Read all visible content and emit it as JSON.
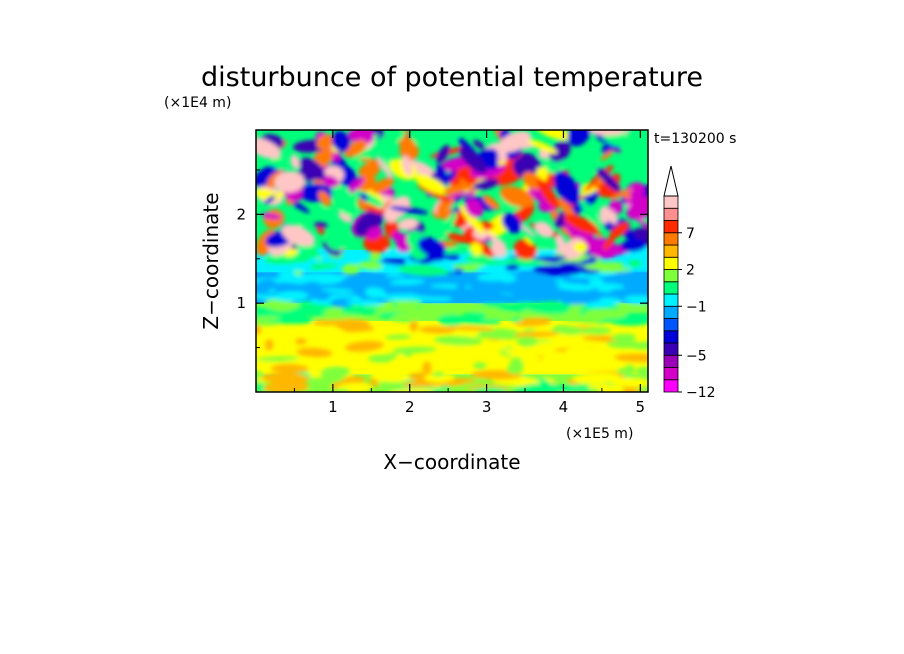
{
  "chart_data": {
    "type": "heatmap",
    "title": "disturbunce of potential temperature",
    "xlabel": "X−coordinate",
    "ylabel": "Z−coordinate",
    "x_unit": "(×1E5 m)",
    "y_unit": "(×1E4 m)",
    "time_label": "t=130200 s",
    "xlim": [
      0,
      5.1
    ],
    "ylim": [
      0,
      2.95
    ],
    "x_ticks": [
      1,
      2,
      3,
      4,
      5
    ],
    "x_tick_labels": [
      "1",
      "2",
      "3",
      "4",
      "5"
    ],
    "y_ticks": [
      1,
      2
    ],
    "y_tick_labels": [
      "1",
      "2"
    ],
    "colorbar": {
      "levels": [
        -12,
        -10,
        -8,
        -5,
        -4,
        -3,
        -2,
        -1,
        0,
        1,
        2,
        3,
        5,
        7,
        8,
        10
      ],
      "labels": [
        {
          "level": -12,
          "text": "−12"
        },
        {
          "level": -5,
          "text": "−5"
        },
        {
          "level": -1,
          "text": "−1"
        },
        {
          "level": 2,
          "text": "2"
        },
        {
          "level": 7,
          "text": "7"
        }
      ],
      "colors": [
        "#ff00ff",
        "#d300c8",
        "#9900b8",
        "#3a00b3",
        "#0000d8",
        "#0055ff",
        "#00aaff",
        "#00f2ff",
        "#00ff7a",
        "#7fff3a",
        "#ffff00",
        "#ffb700",
        "#ff7a00",
        "#ff2a00",
        "#ff8f8f",
        "#ffc6c6"
      ],
      "extend": "max"
    },
    "z_bands": [
      {
        "z_range": [
          0.0,
          0.2
        ],
        "dominant_value": 1.5,
        "description_values": [
          0,
          1,
          2,
          3
        ]
      },
      {
        "z_range": [
          0.2,
          0.8
        ],
        "dominant_value": 2.5,
        "description_values": [
          1,
          2,
          3
        ]
      },
      {
        "z_range": [
          0.8,
          1.0
        ],
        "dominant_value": 1,
        "description_values": [
          0,
          1
        ]
      },
      {
        "z_range": [
          1.0,
          1.35
        ],
        "dominant_value": -1.5,
        "description_values": [
          -2,
          -1
        ]
      },
      {
        "z_range": [
          1.35,
          1.6
        ],
        "dominant_value": -0.5,
        "description_values": [
          -4,
          -1,
          0,
          1
        ]
      },
      {
        "z_range": [
          1.6,
          2.95
        ],
        "dominant_value": 0,
        "description_values": [
          -10,
          -5,
          -4,
          0,
          2,
          5,
          7,
          10
        ]
      }
    ]
  }
}
